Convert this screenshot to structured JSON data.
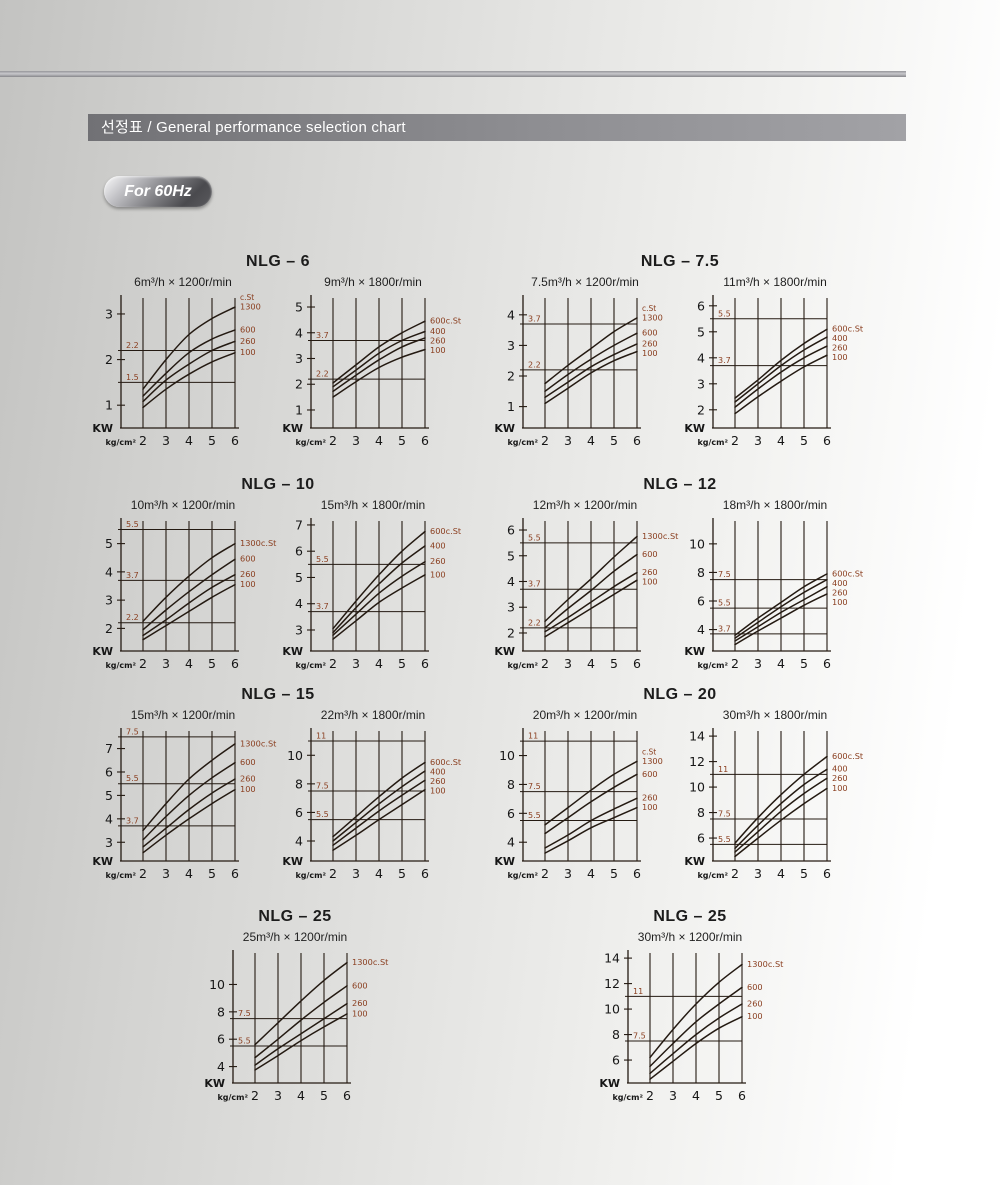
{
  "page": {
    "header_title": "선정표 / General performance selection chart",
    "badge_label": "For 60Hz",
    "colors": {
      "curve_ink": "#241a12",
      "accent": "#8a3e1f",
      "axis_text": "#161616"
    }
  },
  "chart_data": [
    {
      "name": "NLG – 6",
      "charts": [
        {
          "type": "line",
          "title": "6m³/h × 1200r/min",
          "xlabel": "kg/cm²",
          "ylabel": "KW",
          "x": [
            2,
            3,
            4,
            5,
            6
          ],
          "yticks": [
            1,
            2,
            3
          ],
          "ylim": [
            0.5,
            3.35
          ],
          "ref_lines": [
            2.2,
            1.5
          ],
          "legend_header": "c.St",
          "series": [
            {
              "name": "1300",
              "values": [
                1.35,
                2.0,
                2.55,
                2.9,
                3.15
              ]
            },
            {
              "name": "600",
              "values": [
                1.2,
                1.7,
                2.15,
                2.45,
                2.65
              ]
            },
            {
              "name": "260",
              "values": [
                1.08,
                1.55,
                1.9,
                2.2,
                2.4
              ]
            },
            {
              "name": "100",
              "values": [
                0.95,
                1.35,
                1.68,
                1.95,
                2.15
              ]
            }
          ]
        },
        {
          "type": "line",
          "title": "9m³/h × 1800r/min",
          "xlabel": "kg/cm²",
          "ylabel": "KW",
          "x": [
            2,
            3,
            4,
            5,
            6
          ],
          "yticks": [
            1,
            2,
            3,
            4,
            5
          ],
          "ylim": [
            0.3,
            5.35
          ],
          "ref_lines": [
            3.7,
            2.2
          ],
          "series": [
            {
              "name": "600c.St",
              "values": [
                2.05,
                2.75,
                3.45,
                4.0,
                4.45
              ]
            },
            {
              "name": "400",
              "values": [
                1.9,
                2.55,
                3.2,
                3.7,
                4.05
              ]
            },
            {
              "name": "260",
              "values": [
                1.72,
                2.35,
                2.95,
                3.45,
                3.8
              ]
            },
            {
              "name": "100",
              "values": [
                1.5,
                2.1,
                2.65,
                3.05,
                3.35
              ]
            }
          ]
        }
      ]
    },
    {
      "name": "NLG – 7.5",
      "charts": [
        {
          "type": "line",
          "title": "7.5m³/h × 1200r/min",
          "xlabel": "kg/cm²",
          "ylabel": "KW",
          "x": [
            2,
            3,
            4,
            5,
            6
          ],
          "yticks": [
            1,
            2,
            3,
            4
          ],
          "ylim": [
            0.3,
            4.55
          ],
          "ref_lines": [
            3.7,
            2.2
          ],
          "legend_header": "c.St",
          "series": [
            {
              "name": "1300",
              "values": [
                1.75,
                2.35,
                2.9,
                3.45,
                3.9
              ]
            },
            {
              "name": "600",
              "values": [
                1.5,
                2.05,
                2.55,
                3.0,
                3.4
              ]
            },
            {
              "name": "260",
              "values": [
                1.3,
                1.8,
                2.3,
                2.7,
                3.05
              ]
            },
            {
              "name": "100",
              "values": [
                1.1,
                1.6,
                2.1,
                2.5,
                2.8
              ]
            }
          ]
        },
        {
          "type": "line",
          "title": "11m³/h × 1800r/min",
          "xlabel": "kg/cm²",
          "ylabel": "KW",
          "x": [
            2,
            3,
            4,
            5,
            6
          ],
          "yticks": [
            2,
            3,
            4,
            5,
            6
          ],
          "ylim": [
            1.3,
            6.3
          ],
          "ref_lines": [
            5.5,
            3.7
          ],
          "series": [
            {
              "name": "600c.St",
              "values": [
                2.45,
                3.15,
                3.9,
                4.55,
                5.1
              ]
            },
            {
              "name": "400",
              "values": [
                2.3,
                3.0,
                3.7,
                4.3,
                4.8
              ]
            },
            {
              "name": "260",
              "values": [
                2.1,
                2.8,
                3.45,
                4.0,
                4.45
              ]
            },
            {
              "name": "100",
              "values": [
                1.85,
                2.5,
                3.1,
                3.65,
                4.1
              ]
            }
          ]
        }
      ]
    },
    {
      "name": "NLG – 10",
      "charts": [
        {
          "type": "line",
          "title": "10m³/h × 1200r/min",
          "xlabel": "kg/cm²",
          "ylabel": "KW",
          "x": [
            2,
            3,
            4,
            5,
            6
          ],
          "yticks": [
            2,
            3,
            4,
            5
          ],
          "ylim": [
            1.2,
            5.8
          ],
          "ref_lines": [
            5.5,
            3.7,
            2.2
          ],
          "series": [
            {
              "name": "1300c.St",
              "values": [
                2.25,
                3.1,
                3.85,
                4.5,
                5.0
              ]
            },
            {
              "name": "600",
              "values": [
                1.95,
                2.65,
                3.3,
                3.9,
                4.45
              ]
            },
            {
              "name": "260",
              "values": [
                1.75,
                2.3,
                2.9,
                3.45,
                3.9
              ]
            },
            {
              "name": "100",
              "values": [
                1.6,
                2.1,
                2.6,
                3.1,
                3.55
              ]
            }
          ]
        },
        {
          "type": "line",
          "title": "15m³/h × 1800r/min",
          "xlabel": "kg/cm²",
          "ylabel": "KW",
          "x": [
            2,
            3,
            4,
            5,
            6
          ],
          "yticks": [
            3,
            4,
            5,
            6,
            7
          ],
          "ylim": [
            2.2,
            7.15
          ],
          "ref_lines": [
            5.5,
            3.7
          ],
          "series": [
            {
              "name": "600c.St",
              "values": [
                3.05,
                4.1,
                5.1,
                6.0,
                6.75
              ]
            },
            {
              "name": "400",
              "values": [
                2.9,
                3.85,
                4.75,
                5.55,
                6.2
              ]
            },
            {
              "name": "260",
              "values": [
                2.8,
                3.6,
                4.4,
                5.05,
                5.6
              ]
            },
            {
              "name": "100",
              "values": [
                2.65,
                3.35,
                4.05,
                4.6,
                5.1
              ]
            }
          ]
        }
      ]
    },
    {
      "name": "NLG – 12",
      "charts": [
        {
          "type": "line",
          "title": "12m³/h × 1200r/min",
          "xlabel": "kg/cm²",
          "ylabel": "KW",
          "x": [
            2,
            3,
            4,
            5,
            6
          ],
          "yticks": [
            2,
            3,
            4,
            5,
            6
          ],
          "ylim": [
            1.3,
            6.35
          ],
          "ref_lines": [
            5.5,
            3.7,
            2.2
          ],
          "series": [
            {
              "name": "1300c.St",
              "values": [
                2.45,
                3.3,
                4.1,
                4.95,
                5.75
              ]
            },
            {
              "name": "600",
              "values": [
                2.2,
                2.95,
                3.65,
                4.4,
                5.05
              ]
            },
            {
              "name": "260",
              "values": [
                2.05,
                2.6,
                3.2,
                3.8,
                4.35
              ]
            },
            {
              "name": "100",
              "values": [
                1.85,
                2.4,
                2.95,
                3.5,
                4.05
              ]
            }
          ]
        },
        {
          "type": "line",
          "title": "18m³/h × 1800r/min",
          "xlabel": "kg/cm²",
          "ylabel": "KW",
          "x": [
            2,
            3,
            4,
            5,
            6
          ],
          "yticks": [
            4,
            6,
            8,
            10
          ],
          "ylim": [
            2.5,
            11.6
          ],
          "ref_lines": [
            7.5,
            5.5,
            3.7
          ],
          "series": [
            {
              "name": "600c.St",
              "values": [
                3.6,
                4.8,
                5.9,
                7.0,
                7.9
              ]
            },
            {
              "name": "400",
              "values": [
                3.4,
                4.5,
                5.6,
                6.6,
                7.5
              ]
            },
            {
              "name": "260",
              "values": [
                3.2,
                4.2,
                5.2,
                6.1,
                7.0
              ]
            },
            {
              "name": "100",
              "values": [
                2.95,
                3.9,
                4.8,
                5.7,
                6.5
              ]
            }
          ]
        }
      ]
    },
    {
      "name": "NLG – 15",
      "charts": [
        {
          "type": "line",
          "title": "15m³/h × 1200r/min",
          "xlabel": "kg/cm²",
          "ylabel": "KW",
          "x": [
            2,
            3,
            4,
            5,
            6
          ],
          "yticks": [
            3,
            4,
            5,
            6,
            7
          ],
          "ylim": [
            2.2,
            7.75
          ],
          "ref_lines": [
            7.5,
            5.5,
            3.7
          ],
          "series": [
            {
              "name": "1300c.St",
              "values": [
                3.5,
                4.65,
                5.7,
                6.5,
                7.2
              ]
            },
            {
              "name": "600",
              "values": [
                3.1,
                4.1,
                5.0,
                5.75,
                6.4
              ]
            },
            {
              "name": "260",
              "values": [
                2.8,
                3.6,
                4.4,
                5.1,
                5.7
              ]
            },
            {
              "name": "100",
              "values": [
                2.55,
                3.3,
                4.0,
                4.65,
                5.25
              ]
            }
          ]
        },
        {
          "type": "line",
          "title": "22m³/h × 1800r/min",
          "xlabel": "kg/cm²",
          "ylabel": "KW",
          "x": [
            2,
            3,
            4,
            5,
            6
          ],
          "yticks": [
            4,
            6,
            8,
            10
          ],
          "ylim": [
            2.6,
            11.7
          ],
          "ref_lines": [
            11,
            7.5,
            5.5
          ],
          "series": [
            {
              "name": "600c.St",
              "values": [
                4.3,
                5.7,
                7.1,
                8.4,
                9.5
              ]
            },
            {
              "name": "400",
              "values": [
                4.0,
                5.3,
                6.6,
                7.8,
                8.9
              ]
            },
            {
              "name": "260",
              "values": [
                3.7,
                4.9,
                6.1,
                7.2,
                8.25
              ]
            },
            {
              "name": "100",
              "values": [
                3.35,
                4.4,
                5.5,
                6.55,
                7.6
              ]
            }
          ]
        }
      ]
    },
    {
      "name": "NLG – 20",
      "charts": [
        {
          "type": "line",
          "title": "20m³/h × 1200r/min",
          "xlabel": "kg/cm²",
          "ylabel": "KW",
          "x": [
            2,
            3,
            4,
            5,
            6
          ],
          "yticks": [
            4,
            6,
            8,
            10
          ],
          "ylim": [
            2.7,
            11.7
          ],
          "ref_lines": [
            11,
            7.5,
            5.5
          ],
          "legend_header": "c.St",
          "series": [
            {
              "name": "1300",
              "values": [
                5.2,
                6.4,
                7.6,
                8.7,
                9.6
              ]
            },
            {
              "name": "600",
              "values": [
                4.6,
                5.7,
                6.8,
                7.8,
                8.7
              ]
            },
            {
              "name": "260",
              "values": [
                3.6,
                4.5,
                5.5,
                6.3,
                7.05
              ]
            },
            {
              "name": "100",
              "values": [
                3.25,
                4.1,
                5.0,
                5.7,
                6.4
              ]
            }
          ]
        },
        {
          "type": "line",
          "title": "30m³/h × 1800r/min",
          "xlabel": "kg/cm²",
          "ylabel": "KW",
          "x": [
            2,
            3,
            4,
            5,
            6
          ],
          "yticks": [
            6,
            8,
            10,
            12,
            14
          ],
          "ylim": [
            4.2,
            14.4
          ],
          "ref_lines": [
            11,
            7.5,
            5.5
          ],
          "series": [
            {
              "name": "600c.St",
              "values": [
                5.6,
                7.6,
                9.4,
                11.0,
                12.4
              ]
            },
            {
              "name": "400",
              "values": [
                5.2,
                7.0,
                8.7,
                10.2,
                11.4
              ]
            },
            {
              "name": "260",
              "values": [
                4.9,
                6.5,
                8.1,
                9.5,
                10.7
              ]
            },
            {
              "name": "100",
              "values": [
                4.55,
                6.0,
                7.4,
                8.7,
                9.9
              ]
            }
          ]
        }
      ]
    },
    {
      "name": "NLG – 25",
      "charts": [
        {
          "type": "line",
          "title": "25m³/h × 1200r/min",
          "xlabel": "kg/cm²",
          "ylabel": "KW",
          "x": [
            2,
            3,
            4,
            5,
            6
          ],
          "yticks": [
            4,
            6,
            8,
            10
          ],
          "ylim": [
            2.8,
            12.3
          ],
          "ref_lines": [
            7.5,
            5.5
          ],
          "series": [
            {
              "name": "1300c.St",
              "values": [
                5.6,
                7.2,
                8.8,
                10.3,
                11.6
              ]
            },
            {
              "name": "600",
              "values": [
                4.65,
                6.0,
                7.4,
                8.7,
                9.9
              ]
            },
            {
              "name": "260",
              "values": [
                4.1,
                5.3,
                6.4,
                7.5,
                8.6
              ]
            },
            {
              "name": "100",
              "values": [
                3.75,
                4.8,
                5.9,
                6.9,
                7.85
              ]
            }
          ]
        }
      ]
    },
    {
      "name": "NLG – 25",
      "charts": [
        {
          "type": "line",
          "title": "30m³/h × 1200r/min",
          "xlabel": "kg/cm²",
          "ylabel": "KW",
          "x": [
            2,
            3,
            4,
            5,
            6
          ],
          "yticks": [
            6,
            8,
            10,
            12,
            14
          ],
          "ylim": [
            4.2,
            14.4
          ],
          "ref_lines": [
            11,
            7.5
          ],
          "series": [
            {
              "name": "1300c.St",
              "values": [
                6.2,
                8.4,
                10.4,
                12.1,
                13.5
              ]
            },
            {
              "name": "600",
              "values": [
                5.5,
                7.3,
                9.0,
                10.4,
                11.7
              ]
            },
            {
              "name": "260",
              "values": [
                4.95,
                6.5,
                8.0,
                9.3,
                10.4
              ]
            },
            {
              "name": "100",
              "values": [
                4.5,
                5.9,
                7.3,
                8.5,
                9.4
              ]
            }
          ]
        }
      ]
    }
  ]
}
